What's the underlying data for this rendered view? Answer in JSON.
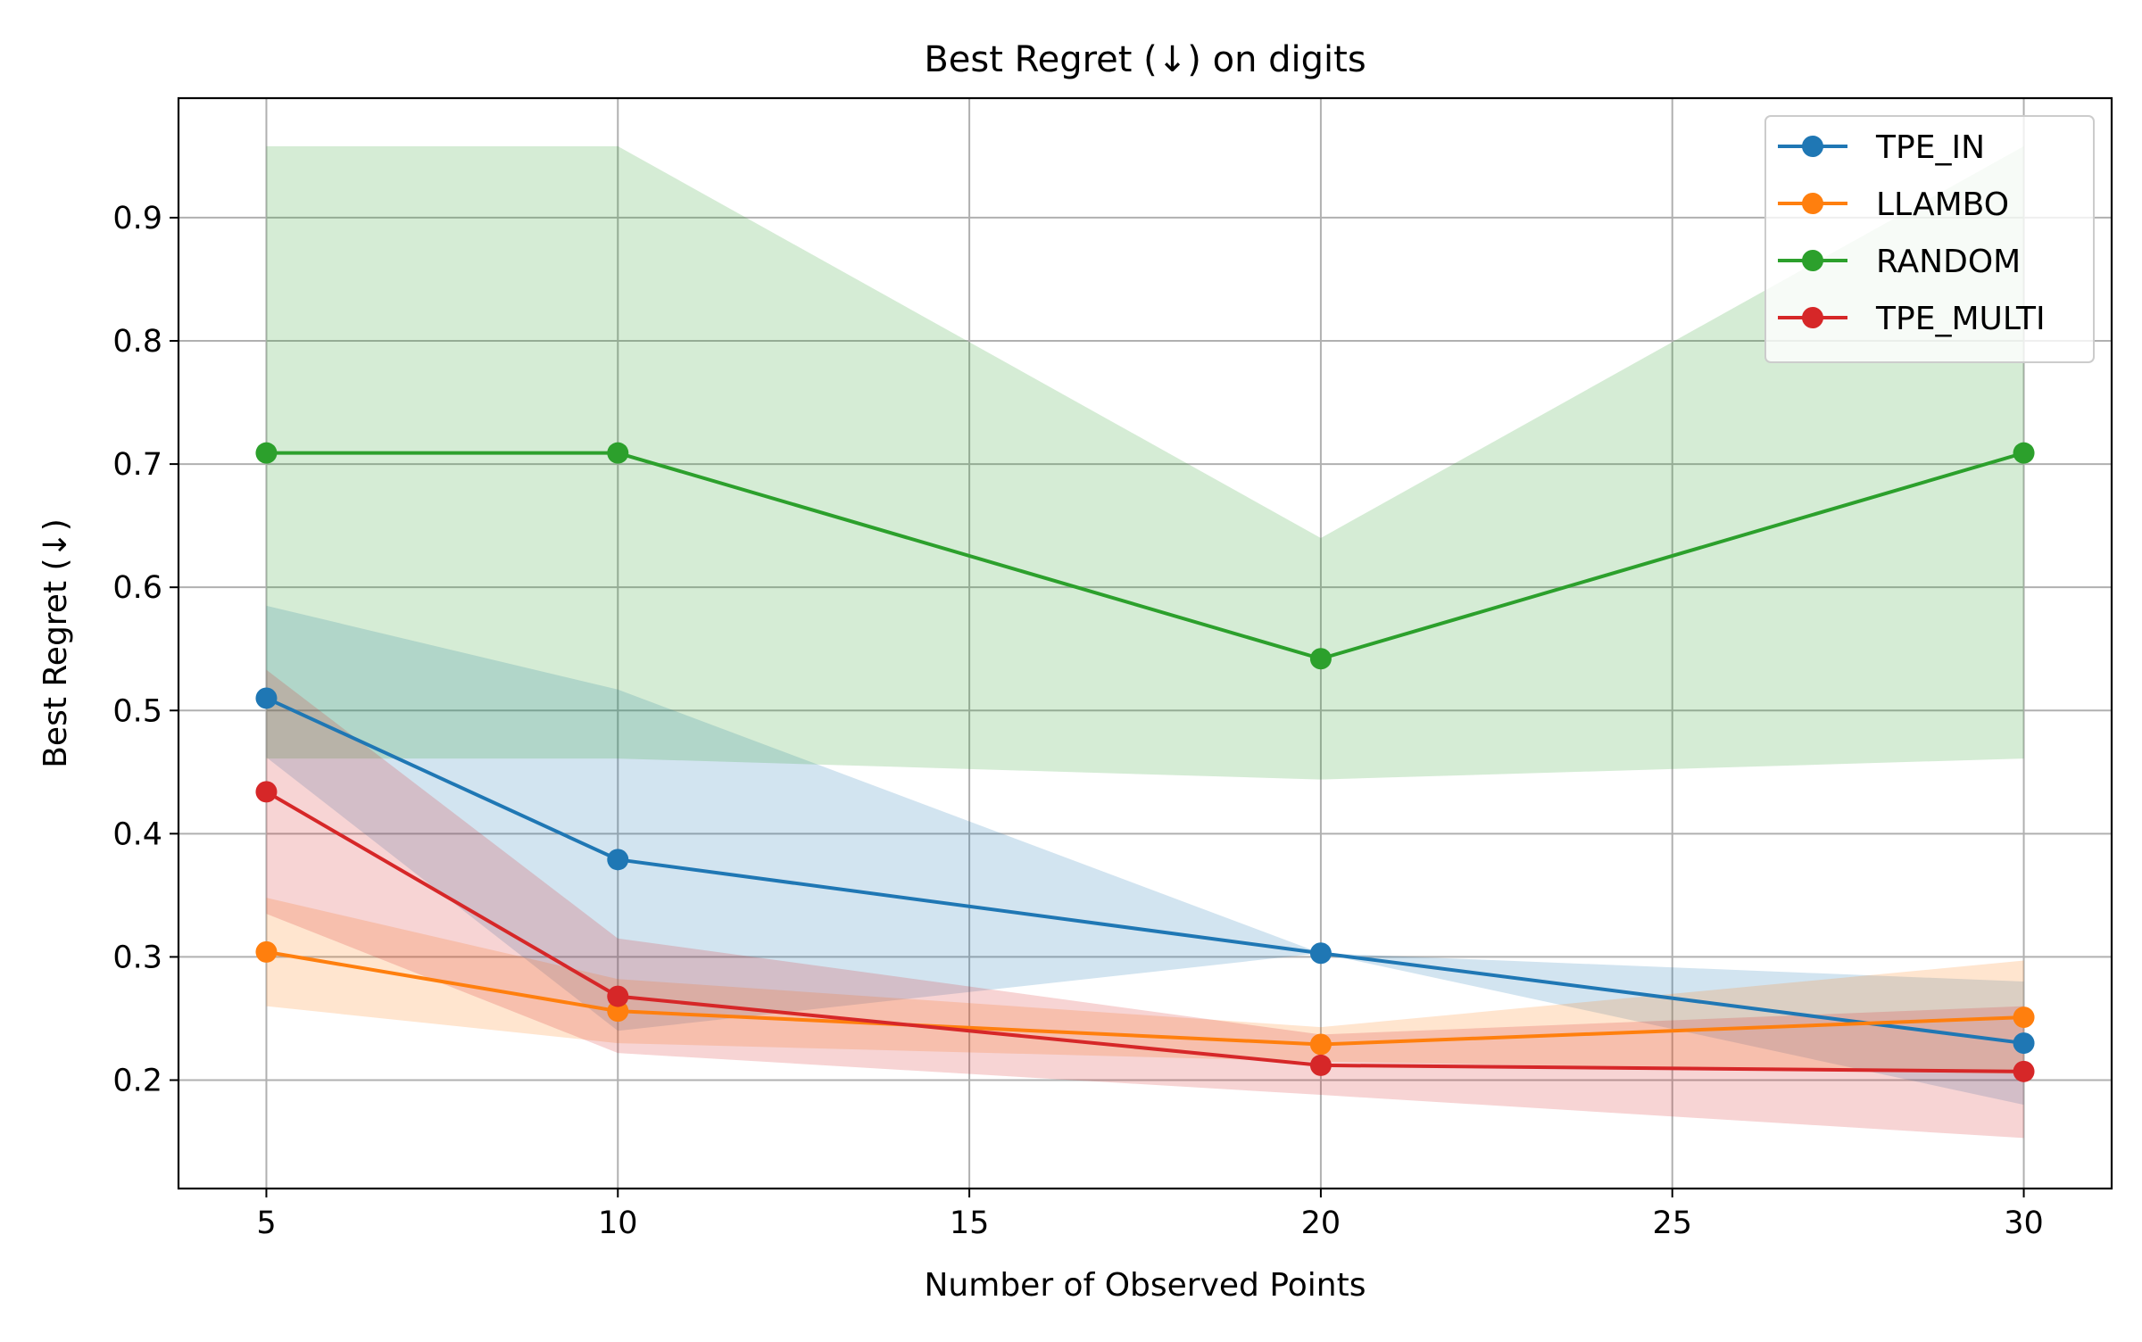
{
  "chart_data": {
    "type": "line",
    "title": "Best Regret (↓) on digits",
    "xlabel": "Number of Observed Points",
    "ylabel": "Best Regret (↓)",
    "x": [
      5,
      10,
      20,
      30
    ],
    "xlim": [
      3.75,
      31.25
    ],
    "ylim": [
      0.112,
      0.997
    ],
    "xticks": [
      5,
      10,
      15,
      20,
      25,
      30
    ],
    "xtick_labels": [
      "5",
      "10",
      "15",
      "20",
      "25",
      "30"
    ],
    "yticks": [
      0.2,
      0.3,
      0.4,
      0.5,
      0.6,
      0.7,
      0.8,
      0.9
    ],
    "ytick_labels": [
      "0.2",
      "0.3",
      "0.4",
      "0.5",
      "0.6",
      "0.7",
      "0.8",
      "0.9"
    ],
    "grid": true,
    "legend_position": "top-right",
    "series": [
      {
        "name": "TPE_IN",
        "color": "#1f77b4",
        "values": [
          0.51,
          0.379,
          0.303,
          0.23
        ],
        "lower": [
          0.462,
          0.24,
          0.303,
          0.18
        ],
        "upper": [
          0.585,
          0.517,
          0.303,
          0.28
        ]
      },
      {
        "name": "LLAMBO",
        "color": "#ff7f0e",
        "values": [
          0.304,
          0.256,
          0.229,
          0.251
        ],
        "lower": [
          0.26,
          0.23,
          0.215,
          0.205
        ],
        "upper": [
          0.348,
          0.282,
          0.243,
          0.297
        ]
      },
      {
        "name": "RANDOM",
        "color": "#2ca02c",
        "values": [
          0.709,
          0.709,
          0.542,
          0.709
        ],
        "lower": [
          0.461,
          0.461,
          0.444,
          0.461
        ],
        "upper": [
          0.958,
          0.958,
          0.64,
          0.958
        ]
      },
      {
        "name": "TPE_MULTI",
        "color": "#d62728",
        "values": [
          0.434,
          0.268,
          0.212,
          0.207
        ],
        "lower": [
          0.335,
          0.222,
          0.188,
          0.153
        ],
        "upper": [
          0.533,
          0.315,
          0.237,
          0.26
        ]
      }
    ]
  }
}
